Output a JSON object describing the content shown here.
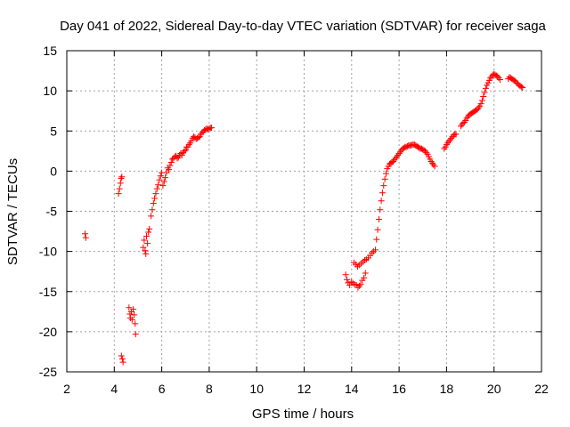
{
  "chart_data": {
    "type": "scatter",
    "title": "Day 041 of 2022, Sidereal Day-to-day VTEC variation (SDTVAR) for receiver saga",
    "xlabel": "GPS time / hours",
    "ylabel": "SDTVAR / TECUs",
    "xlim": [
      2,
      22
    ],
    "ylim": [
      -25,
      15
    ],
    "xticks": [
      2,
      4,
      6,
      8,
      10,
      12,
      14,
      16,
      18,
      20,
      22
    ],
    "yticks": [
      -25,
      -20,
      -15,
      -10,
      -5,
      0,
      5,
      10,
      15
    ],
    "grid": true,
    "marker": "+",
    "series": [
      {
        "name": "SDTVAR",
        "color": "#ff0000",
        "points": [
          [
            2.77,
            -7.8
          ],
          [
            2.8,
            -8.3
          ],
          [
            4.18,
            -2.8
          ],
          [
            4.22,
            -2.2
          ],
          [
            4.26,
            -1.5
          ],
          [
            4.29,
            -0.9
          ],
          [
            4.32,
            -0.7
          ],
          [
            4.3,
            -23.0
          ],
          [
            4.34,
            -23.4
          ],
          [
            4.37,
            -23.8
          ],
          [
            4.62,
            -17.0
          ],
          [
            4.66,
            -17.8
          ],
          [
            4.68,
            -18.3
          ],
          [
            4.72,
            -17.5
          ],
          [
            4.75,
            -18.5
          ],
          [
            4.8,
            -17.2
          ],
          [
            4.84,
            -17.9
          ],
          [
            4.88,
            -19.0
          ],
          [
            4.9,
            -20.3
          ],
          [
            5.22,
            -9.5
          ],
          [
            5.26,
            -8.6
          ],
          [
            5.3,
            -9.9
          ],
          [
            5.33,
            -10.3
          ],
          [
            5.36,
            -8.1
          ],
          [
            5.4,
            -9.0
          ],
          [
            5.44,
            -7.6
          ],
          [
            5.48,
            -7.2
          ],
          [
            5.55,
            -5.6
          ],
          [
            5.6,
            -4.8
          ],
          [
            5.65,
            -4.0
          ],
          [
            5.7,
            -3.4
          ],
          [
            5.75,
            -2.8
          ],
          [
            5.8,
            -2.2
          ],
          [
            5.85,
            -1.7
          ],
          [
            5.9,
            -1.1
          ],
          [
            5.95,
            -0.6
          ],
          [
            6.0,
            -0.2
          ],
          [
            6.05,
            -1.8
          ],
          [
            6.1,
            -1.3
          ],
          [
            6.15,
            -0.8
          ],
          [
            6.2,
            -0.2
          ],
          [
            6.25,
            0.4
          ],
          [
            6.3,
            0.2
          ],
          [
            6.35,
            0.7
          ],
          [
            6.4,
            1.1
          ],
          [
            6.45,
            1.5
          ],
          [
            6.5,
            1.6
          ],
          [
            6.55,
            1.8
          ],
          [
            6.6,
            1.9
          ],
          [
            6.65,
            1.6
          ],
          [
            6.7,
            1.7
          ],
          [
            6.75,
            2.0
          ],
          [
            6.8,
            2.2
          ],
          [
            6.85,
            2.0
          ],
          [
            6.9,
            2.3
          ],
          [
            6.95,
            2.5
          ],
          [
            7.0,
            2.6
          ],
          [
            7.05,
            3.0
          ],
          [
            7.1,
            3.0
          ],
          [
            7.15,
            3.3
          ],
          [
            7.2,
            3.5
          ],
          [
            7.25,
            3.8
          ],
          [
            7.3,
            4.1
          ],
          [
            7.35,
            4.3
          ],
          [
            7.4,
            4.2
          ],
          [
            7.45,
            4.0
          ],
          [
            7.5,
            4.1
          ],
          [
            7.55,
            4.2
          ],
          [
            7.6,
            4.3
          ],
          [
            7.65,
            4.6
          ],
          [
            7.7,
            4.8
          ],
          [
            7.75,
            4.9
          ],
          [
            7.8,
            5.1
          ],
          [
            7.85,
            5.2
          ],
          [
            7.9,
            5.3
          ],
          [
            7.95,
            5.2
          ],
          [
            8.0,
            5.3
          ],
          [
            8.05,
            5.4
          ],
          [
            8.1,
            5.4
          ],
          [
            13.75,
            -12.9
          ],
          [
            13.8,
            -13.5
          ],
          [
            13.85,
            -13.9
          ],
          [
            13.92,
            -14.2
          ],
          [
            13.98,
            -13.8
          ],
          [
            14.05,
            -13.9
          ],
          [
            14.12,
            -14.1
          ],
          [
            14.2,
            -14.2
          ],
          [
            14.27,
            -14.5
          ],
          [
            14.33,
            -14.3
          ],
          [
            14.38,
            -14.1
          ],
          [
            14.45,
            -13.6
          ],
          [
            14.52,
            -13.3
          ],
          [
            14.58,
            -12.7
          ],
          [
            14.1,
            -11.4
          ],
          [
            14.18,
            -11.6
          ],
          [
            14.25,
            -11.9
          ],
          [
            14.32,
            -11.7
          ],
          [
            14.4,
            -11.5
          ],
          [
            14.48,
            -11.3
          ],
          [
            14.55,
            -11.1
          ],
          [
            14.62,
            -11.0
          ],
          [
            14.7,
            -10.8
          ],
          [
            14.78,
            -10.5
          ],
          [
            14.86,
            -10.2
          ],
          [
            14.92,
            -10.0
          ],
          [
            15.0,
            -9.8
          ],
          [
            15.05,
            -8.5
          ],
          [
            15.1,
            -7.3
          ],
          [
            15.15,
            -6.0
          ],
          [
            15.2,
            -4.8
          ],
          [
            15.25,
            -3.7
          ],
          [
            15.3,
            -2.7
          ],
          [
            15.35,
            -1.8
          ],
          [
            15.4,
            -1.0
          ],
          [
            15.45,
            -0.3
          ],
          [
            15.5,
            0.3
          ],
          [
            15.55,
            0.6
          ],
          [
            15.6,
            0.9
          ],
          [
            15.65,
            1.0
          ],
          [
            15.7,
            1.1
          ],
          [
            15.75,
            1.2
          ],
          [
            15.8,
            1.4
          ],
          [
            15.85,
            1.6
          ],
          [
            15.9,
            1.8
          ],
          [
            15.95,
            2.0
          ],
          [
            16.0,
            2.2
          ],
          [
            16.05,
            2.4
          ],
          [
            16.1,
            2.6
          ],
          [
            16.15,
            2.8
          ],
          [
            16.2,
            2.9
          ],
          [
            16.25,
            3.0
          ],
          [
            16.3,
            3.0
          ],
          [
            16.35,
            3.1
          ],
          [
            16.4,
            3.2
          ],
          [
            16.45,
            3.2
          ],
          [
            16.5,
            3.2
          ],
          [
            16.55,
            3.3
          ],
          [
            16.6,
            3.3
          ],
          [
            16.65,
            3.3
          ],
          [
            16.7,
            3.2
          ],
          [
            16.75,
            3.1
          ],
          [
            16.8,
            3.0
          ],
          [
            16.85,
            2.9
          ],
          [
            16.9,
            2.8
          ],
          [
            16.95,
            2.8
          ],
          [
            17.0,
            2.7
          ],
          [
            17.05,
            2.6
          ],
          [
            17.1,
            2.5
          ],
          [
            17.15,
            2.3
          ],
          [
            17.2,
            2.1
          ],
          [
            17.25,
            1.8
          ],
          [
            17.3,
            1.5
          ],
          [
            17.35,
            1.2
          ],
          [
            17.4,
            1.0
          ],
          [
            17.45,
            0.8
          ],
          [
            17.5,
            0.6
          ],
          [
            17.9,
            2.8
          ],
          [
            17.95,
            3.0
          ],
          [
            18.0,
            3.3
          ],
          [
            18.05,
            3.5
          ],
          [
            18.1,
            3.7
          ],
          [
            18.15,
            3.9
          ],
          [
            18.2,
            4.1
          ],
          [
            18.25,
            4.3
          ],
          [
            18.3,
            4.5
          ],
          [
            18.35,
            4.6
          ],
          [
            18.4,
            4.6
          ],
          [
            18.6,
            5.6
          ],
          [
            18.65,
            5.8
          ],
          [
            18.7,
            6.0
          ],
          [
            18.75,
            6.1
          ],
          [
            18.8,
            6.3
          ],
          [
            18.85,
            6.6
          ],
          [
            18.9,
            6.8
          ],
          [
            18.95,
            7.0
          ],
          [
            19.0,
            7.1
          ],
          [
            19.05,
            7.2
          ],
          [
            19.1,
            7.3
          ],
          [
            19.15,
            7.4
          ],
          [
            19.2,
            7.5
          ],
          [
            19.25,
            7.6
          ],
          [
            19.3,
            7.7
          ],
          [
            19.35,
            7.9
          ],
          [
            19.4,
            8.1
          ],
          [
            19.45,
            8.4
          ],
          [
            19.5,
            8.8
          ],
          [
            19.55,
            9.3
          ],
          [
            19.6,
            9.8
          ],
          [
            19.65,
            10.3
          ],
          [
            19.7,
            10.7
          ],
          [
            19.75,
            11.0
          ],
          [
            19.8,
            11.3
          ],
          [
            19.85,
            11.6
          ],
          [
            19.9,
            11.8
          ],
          [
            19.95,
            12.0
          ],
          [
            20.0,
            12.1
          ],
          [
            20.05,
            12.0
          ],
          [
            20.1,
            11.9
          ],
          [
            20.15,
            11.8
          ],
          [
            20.2,
            11.6
          ],
          [
            20.25,
            11.4
          ],
          [
            20.6,
            11.5
          ],
          [
            20.65,
            11.7
          ],
          [
            20.7,
            11.6
          ],
          [
            20.75,
            11.5
          ],
          [
            20.8,
            11.4
          ],
          [
            20.85,
            11.3
          ],
          [
            20.9,
            11.2
          ],
          [
            20.95,
            11.0
          ],
          [
            21.0,
            10.9
          ],
          [
            21.05,
            10.7
          ],
          [
            21.1,
            10.6
          ],
          [
            21.15,
            10.5
          ],
          [
            21.2,
            10.4
          ]
        ]
      }
    ]
  }
}
